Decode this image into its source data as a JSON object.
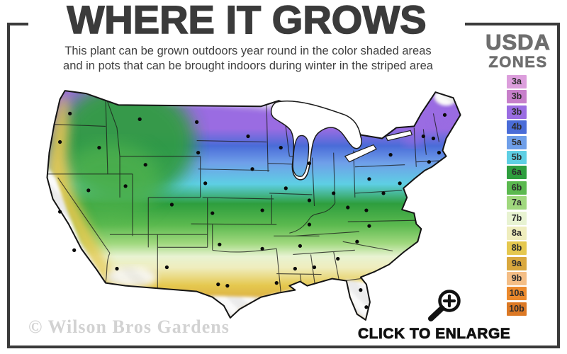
{
  "header": {
    "title": "WHERE IT GROWS",
    "subtitle_line1": "This plant can be grown outdoors year round in the color shaded areas",
    "subtitle_line2": "and in pots that can be brought indoors during winter in the striped area"
  },
  "legend": {
    "title_line1": "USDA",
    "title_line2": "ZONES",
    "zones": [
      {
        "label": "3a",
        "color": "#DC9EDC"
      },
      {
        "label": "3b",
        "color": "#C77FCA"
      },
      {
        "label": "3b",
        "color": "#9A6CE2"
      },
      {
        "label": "4b",
        "color": "#4A6CD8"
      },
      {
        "label": "5a",
        "color": "#6F9FE9"
      },
      {
        "label": "5b",
        "color": "#5ECFE4"
      },
      {
        "label": "6a",
        "color": "#2E9E3E"
      },
      {
        "label": "6b",
        "color": "#5BB94F"
      },
      {
        "label": "7a",
        "color": "#A0D87E"
      },
      {
        "label": "7b",
        "color": "#E8F3D2"
      },
      {
        "label": "8a",
        "color": "#EFEDBD"
      },
      {
        "label": "8b",
        "color": "#E5C84F"
      },
      {
        "label": "9a",
        "color": "#D9A83E"
      },
      {
        "label": "9b",
        "color": "#F4BE86"
      },
      {
        "label": "10a",
        "color": "#EC8A2D"
      },
      {
        "label": "10b",
        "color": "#DC7925"
      }
    ]
  },
  "map": {
    "watermark": "© Wilson Bros Gardens"
  },
  "cta": {
    "label": "CLICK TO ENLARGE"
  },
  "colors": {
    "frame": "#3A3A3A",
    "title_text": "#3B3B3B",
    "subtitle_text": "#3F3F3F",
    "legend_title_text": "#6E6E6E",
    "cta_text": "#111111",
    "watermark_text": "#D2D2D2"
  }
}
